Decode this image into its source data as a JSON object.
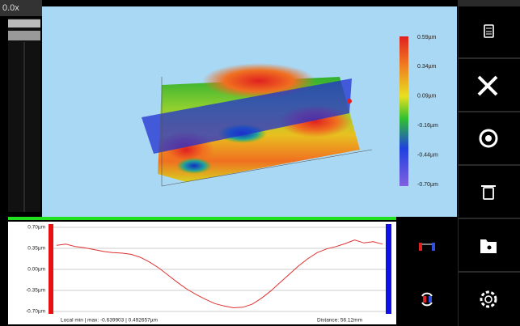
{
  "zoom_label": "0.0x",
  "colorbar": {
    "labels": [
      "0.59µm",
      "0.34µm",
      "0.09µm",
      "-0.16µm",
      "-0.44µm",
      "-0.70µm"
    ]
  },
  "profile": {
    "ylim": [
      -0.7,
      0.7
    ],
    "yticks": [
      {
        "value": 0.7,
        "label": "0.70µm"
      },
      {
        "value": 0.35,
        "label": "0.35µm"
      },
      {
        "value": 0.0,
        "label": "0.00µm"
      },
      {
        "value": -0.35,
        "label": "-0.35µm"
      },
      {
        "value": -0.7,
        "label": "-0.70µm"
      }
    ],
    "values": [
      0.4,
      0.42,
      0.38,
      0.36,
      0.33,
      0.3,
      0.28,
      0.27,
      0.25,
      0.2,
      0.12,
      0.02,
      -0.1,
      -0.22,
      -0.33,
      -0.42,
      -0.5,
      -0.57,
      -0.61,
      -0.64,
      -0.63,
      -0.58,
      -0.48,
      -0.36,
      -0.22,
      -0.08,
      0.06,
      0.18,
      0.28,
      0.34,
      0.38,
      0.43,
      0.49,
      0.44,
      0.46,
      0.42
    ],
    "color": "#e03030",
    "local_minmax": "Local min | max: -0.639903 | 0.492657µm",
    "distance": "Distance: 56.12mm"
  }
}
